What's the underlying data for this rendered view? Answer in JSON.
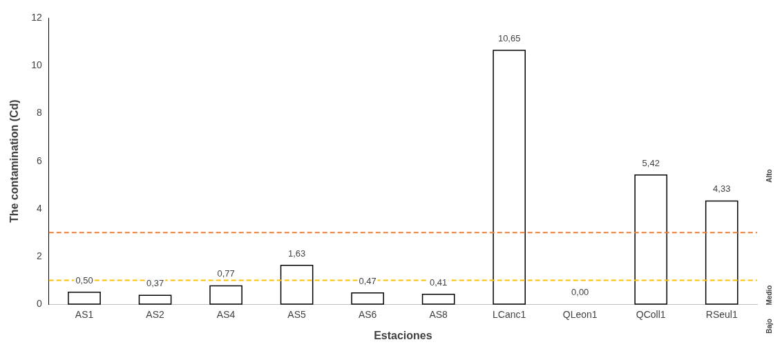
{
  "chart_data": {
    "type": "bar",
    "xlabel": "Estaciones",
    "ylabel": "The contamination (Cd)",
    "categories": [
      "AS1",
      "AS2",
      "AS4",
      "AS5",
      "AS6",
      "AS8",
      "LCanc1",
      "QLeon1",
      "QColl1",
      "RSeul1"
    ],
    "values": [
      0.5,
      0.37,
      0.77,
      1.63,
      0.47,
      0.41,
      10.65,
      0,
      5.42,
      4.33
    ],
    "value_labels": [
      "0,50",
      "0,37",
      "0,77",
      "1,63",
      "0,47",
      "0,41",
      "10,65",
      "0,00",
      "5,42",
      "4,33"
    ],
    "color": "#ffffff",
    "ylim": [
      0,
      12
    ],
    "yticks": [
      0,
      2,
      4,
      6,
      8,
      10,
      12
    ],
    "grid": false,
    "legend": false,
    "ref_lines": [
      {
        "axis": "y",
        "value": 3,
        "color": "#ed7d31",
        "line_style": "dashed"
      },
      {
        "axis": "y",
        "value": 1,
        "color": "#ffc000",
        "line_style": "dashed"
      }
    ],
    "annotations": [
      "Alto",
      "Medio",
      "Bajo"
    ]
  }
}
